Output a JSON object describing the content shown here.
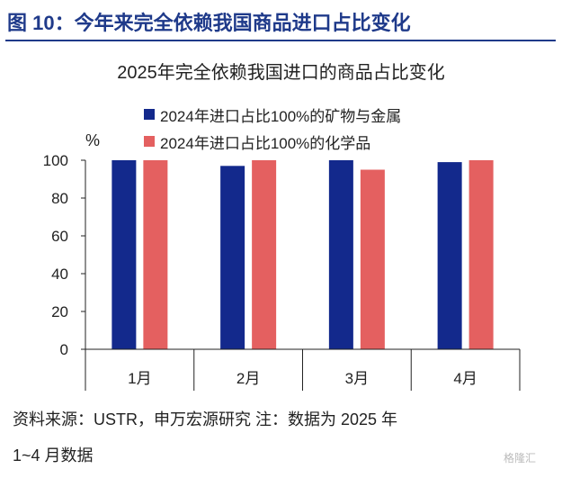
{
  "figure_heading": "图 10：今年来完全依赖我国商品进口占比变化",
  "colors": {
    "navy": "#13298c",
    "coral": "#e46060",
    "heading": "#1f3a8a"
  },
  "chart_data": {
    "type": "bar",
    "title": "2025年完全依赖我国进口的商品占比变化",
    "ylabel": "%",
    "xlabel": "",
    "ylim": [
      0,
      100
    ],
    "yticks": [
      0,
      20,
      40,
      60,
      80,
      100
    ],
    "categories": [
      "1月",
      "2月",
      "3月",
      "4月"
    ],
    "series": [
      {
        "name": "2024年进口占比100%的矿物与金属",
        "color": "#13298c",
        "values": [
          100,
          97,
          100,
          99
        ]
      },
      {
        "name": "2024年进口占比100%的化学品",
        "color": "#e46060",
        "values": [
          100,
          100,
          95,
          100
        ]
      }
    ]
  },
  "source_line1": "资料来源：USTR，申万宏源研究 注：数据为 2025 年",
  "source_line2": "1~4 月数据",
  "watermark": "格隆汇"
}
